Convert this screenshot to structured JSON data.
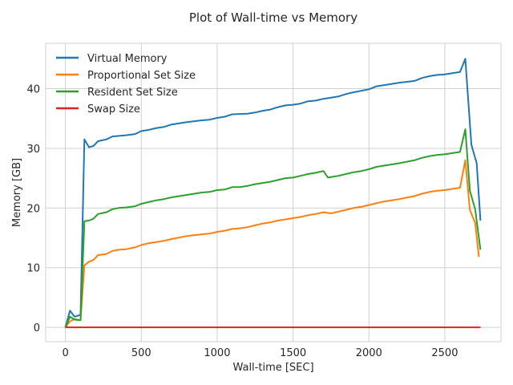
{
  "chart_data": {
    "type": "line",
    "title": "Plot of Wall-time vs Memory",
    "xlabel": "Wall-time [SEC]",
    "ylabel": "Memory [GB]",
    "xlim": [
      -130,
      2870
    ],
    "ylim": [
      -2.4,
      47.6
    ],
    "xticks": [
      0,
      500,
      1000,
      1500,
      2000,
      2500
    ],
    "yticks": [
      0,
      10,
      20,
      30,
      40
    ],
    "grid": true,
    "legend": "top-left",
    "series": [
      {
        "name": "Virtual Memory",
        "color": "#1f77b4",
        "points": [
          [
            0,
            0
          ],
          [
            30,
            2.8
          ],
          [
            60,
            1.8
          ],
          [
            100,
            2.1
          ],
          [
            125,
            31.5
          ],
          [
            155,
            30.2
          ],
          [
            185,
            30.4
          ],
          [
            215,
            31.2
          ],
          [
            270,
            31.5
          ],
          [
            310,
            32.0
          ],
          [
            400,
            32.2
          ],
          [
            460,
            32.4
          ],
          [
            500,
            32.9
          ],
          [
            550,
            33.1
          ],
          [
            600,
            33.4
          ],
          [
            650,
            33.6
          ],
          [
            700,
            34.0
          ],
          [
            800,
            34.4
          ],
          [
            900,
            34.7
          ],
          [
            950,
            34.8
          ],
          [
            1000,
            35.1
          ],
          [
            1050,
            35.3
          ],
          [
            1100,
            35.7
          ],
          [
            1200,
            35.8
          ],
          [
            1250,
            36.0
          ],
          [
            1300,
            36.3
          ],
          [
            1350,
            36.5
          ],
          [
            1400,
            36.9
          ],
          [
            1450,
            37.2
          ],
          [
            1500,
            37.3
          ],
          [
            1550,
            37.5
          ],
          [
            1600,
            37.9
          ],
          [
            1650,
            38.0
          ],
          [
            1700,
            38.3
          ],
          [
            1800,
            38.7
          ],
          [
            1850,
            39.1
          ],
          [
            1900,
            39.4
          ],
          [
            2000,
            39.9
          ],
          [
            2050,
            40.4
          ],
          [
            2100,
            40.6
          ],
          [
            2150,
            40.8
          ],
          [
            2200,
            41.0
          ],
          [
            2300,
            41.3
          ],
          [
            2350,
            41.8
          ],
          [
            2400,
            42.1
          ],
          [
            2450,
            42.3
          ],
          [
            2500,
            42.4
          ],
          [
            2600,
            42.8
          ],
          [
            2635,
            45.0
          ],
          [
            2675,
            30.6
          ],
          [
            2710,
            27.5
          ],
          [
            2735,
            17.9
          ]
        ]
      },
      {
        "name": "Proportional Set Size",
        "color": "#ff7f0e",
        "points": [
          [
            0,
            0
          ],
          [
            30,
            1.0
          ],
          [
            60,
            1.4
          ],
          [
            100,
            1.2
          ],
          [
            125,
            10.4
          ],
          [
            155,
            11.0
          ],
          [
            185,
            11.3
          ],
          [
            215,
            12.1
          ],
          [
            270,
            12.3
          ],
          [
            310,
            12.8
          ],
          [
            350,
            13.0
          ],
          [
            400,
            13.1
          ],
          [
            460,
            13.4
          ],
          [
            500,
            13.8
          ],
          [
            550,
            14.1
          ],
          [
            600,
            14.3
          ],
          [
            650,
            14.5
          ],
          [
            700,
            14.8
          ],
          [
            800,
            15.3
          ],
          [
            900,
            15.6
          ],
          [
            950,
            15.7
          ],
          [
            1000,
            16.0
          ],
          [
            1050,
            16.2
          ],
          [
            1100,
            16.5
          ],
          [
            1150,
            16.6
          ],
          [
            1200,
            16.8
          ],
          [
            1250,
            17.1
          ],
          [
            1300,
            17.4
          ],
          [
            1350,
            17.6
          ],
          [
            1400,
            17.9
          ],
          [
            1450,
            18.1
          ],
          [
            1500,
            18.3
          ],
          [
            1550,
            18.5
          ],
          [
            1600,
            18.8
          ],
          [
            1650,
            19.0
          ],
          [
            1700,
            19.3
          ],
          [
            1750,
            19.1
          ],
          [
            1800,
            19.4
          ],
          [
            1850,
            19.7
          ],
          [
            1900,
            20.0
          ],
          [
            1950,
            20.2
          ],
          [
            2000,
            20.5
          ],
          [
            2050,
            20.8
          ],
          [
            2100,
            21.1
          ],
          [
            2150,
            21.3
          ],
          [
            2200,
            21.5
          ],
          [
            2300,
            22.0
          ],
          [
            2350,
            22.4
          ],
          [
            2400,
            22.7
          ],
          [
            2450,
            22.9
          ],
          [
            2500,
            23.0
          ],
          [
            2600,
            23.4
          ],
          [
            2635,
            28.0
          ],
          [
            2665,
            19.7
          ],
          [
            2700,
            17.5
          ],
          [
            2725,
            11.8
          ]
        ]
      },
      {
        "name": "Resident Set Size",
        "color": "#2ca02c",
        "points": [
          [
            0,
            0
          ],
          [
            30,
            1.8
          ],
          [
            60,
            1.3
          ],
          [
            100,
            1.2
          ],
          [
            125,
            17.8
          ],
          [
            155,
            17.9
          ],
          [
            185,
            18.2
          ],
          [
            215,
            19.0
          ],
          [
            270,
            19.3
          ],
          [
            310,
            19.8
          ],
          [
            350,
            20.0
          ],
          [
            400,
            20.1
          ],
          [
            460,
            20.3
          ],
          [
            500,
            20.7
          ],
          [
            550,
            21.0
          ],
          [
            600,
            21.3
          ],
          [
            650,
            21.5
          ],
          [
            700,
            21.8
          ],
          [
            800,
            22.2
          ],
          [
            900,
            22.6
          ],
          [
            950,
            22.7
          ],
          [
            1000,
            23.0
          ],
          [
            1050,
            23.1
          ],
          [
            1100,
            23.5
          ],
          [
            1150,
            23.5
          ],
          [
            1200,
            23.7
          ],
          [
            1250,
            24.0
          ],
          [
            1300,
            24.2
          ],
          [
            1350,
            24.4
          ],
          [
            1400,
            24.7
          ],
          [
            1450,
            25.0
          ],
          [
            1500,
            25.1
          ],
          [
            1550,
            25.4
          ],
          [
            1600,
            25.7
          ],
          [
            1650,
            25.9
          ],
          [
            1700,
            26.2
          ],
          [
            1730,
            25.1
          ],
          [
            1800,
            25.4
          ],
          [
            1850,
            25.7
          ],
          [
            1900,
            26.0
          ],
          [
            1950,
            26.2
          ],
          [
            2000,
            26.5
          ],
          [
            2050,
            26.9
          ],
          [
            2100,
            27.1
          ],
          [
            2150,
            27.3
          ],
          [
            2200,
            27.5
          ],
          [
            2300,
            28.0
          ],
          [
            2350,
            28.4
          ],
          [
            2400,
            28.7
          ],
          [
            2450,
            28.9
          ],
          [
            2500,
            29.0
          ],
          [
            2600,
            29.4
          ],
          [
            2635,
            33.2
          ],
          [
            2665,
            22.9
          ],
          [
            2700,
            19.8
          ],
          [
            2735,
            13.0
          ]
        ]
      },
      {
        "name": "Swap Size",
        "color": "#d62728",
        "points": [
          [
            0,
            0
          ],
          [
            2735,
            0
          ]
        ]
      }
    ]
  }
}
